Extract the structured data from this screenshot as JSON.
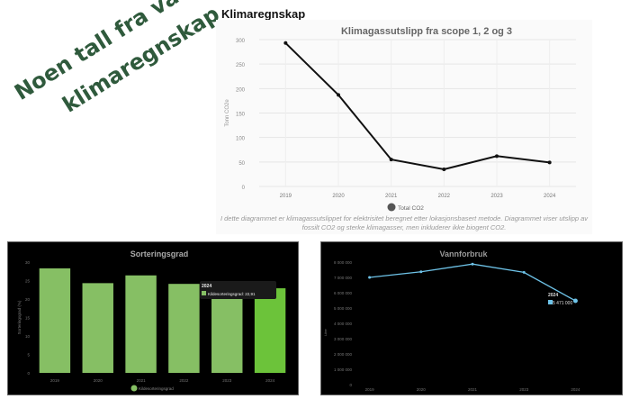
{
  "headline": {
    "line1": "Noen tall fra vårt",
    "line2": "klimaregnskap",
    "color": "#2f5a3c"
  },
  "section_title": "Klimaregnskap",
  "caption": "I dette diagrammet er klimagassutslippet for elektrisitet beregnet etter lokasjonsbasert metode. Diagrammet viser utslipp av fossilt CO2 og sterke klimagasser, men inkluderer ikke biogent CO2.",
  "chart_data": [
    {
      "type": "line",
      "title": "Klimagassutslipp fra scope 1, 2 og 3",
      "xlabel": "",
      "ylabel": "Tonn CO2e",
      "categories": [
        "2019",
        "2020",
        "2021",
        "2022",
        "2023",
        "2024"
      ],
      "series": [
        {
          "name": "Total CO2",
          "values": [
            293,
            187,
            55,
            35,
            62,
            49
          ],
          "color": "#111111"
        }
      ],
      "ylim": [
        0,
        300
      ],
      "yticks": [
        0,
        50,
        100,
        150,
        200,
        250,
        300
      ],
      "grid": true,
      "legend": {
        "position": "bottom",
        "entries": [
          "Total CO2"
        ]
      },
      "background": "#fafafa"
    },
    {
      "type": "bar",
      "title": "Sorteringsgrad",
      "xlabel": "",
      "ylabel": "Sorteringsgrad (%)",
      "categories": [
        "2019",
        "2020",
        "2021",
        "2022",
        "2023",
        "2024"
      ],
      "series": [
        {
          "name": "Kildesorteringsgrad",
          "values": [
            28.3,
            24.3,
            26.4,
            24.1,
            20.5,
            22.91
          ],
          "color": "#86bf64",
          "highlight_color": "#6cc33a"
        }
      ],
      "ylim": [
        0,
        30
      ],
      "yticks": [
        0,
        5,
        10,
        15,
        20,
        25,
        30
      ],
      "legend": {
        "position": "bottom",
        "entries": [
          "Kildesorteringsgrad"
        ]
      },
      "tooltip": {
        "title": "2024",
        "label": "Kildesorteringsgrad",
        "value": "22,91"
      },
      "background": "#000000"
    },
    {
      "type": "line",
      "title": "Vannforbruk",
      "xlabel": "",
      "ylabel": "Liter",
      "categories": [
        "2019",
        "2020",
        "2021",
        "2023",
        "2024"
      ],
      "series": [
        {
          "name": "Vannforbruk",
          "values": [
            7000000,
            7370000,
            7870000,
            7330000,
            5471000
          ],
          "color": "#6ec3e8"
        }
      ],
      "ylim": [
        0,
        8000000
      ],
      "yticks": [
        "0",
        "1 000 000",
        "2 000 000",
        "3 000 000",
        "4 000 000",
        "5 000 000",
        "6 000 000",
        "7 000 000",
        "8 000 000"
      ],
      "tooltip": {
        "title": "2024",
        "value": "5 471 000"
      },
      "background": "#000000"
    }
  ]
}
